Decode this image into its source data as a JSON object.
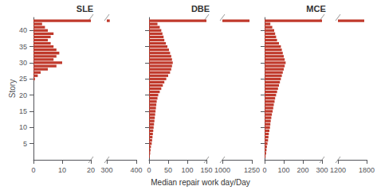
{
  "chart_data": [
    {
      "type": "bar",
      "orientation": "horizontal",
      "title": "SLE",
      "ylabel": "Story",
      "categories": [
        1,
        2,
        3,
        4,
        5,
        6,
        7,
        8,
        9,
        10,
        11,
        12,
        13,
        14,
        15,
        16,
        17,
        18,
        19,
        20,
        21,
        22,
        23,
        24,
        25,
        26,
        27,
        28,
        29,
        30,
        31,
        32,
        33,
        34,
        35,
        36,
        37,
        38,
        39,
        40,
        41,
        42,
        43
      ],
      "values": [
        0,
        0,
        0,
        0,
        0,
        0,
        0,
        0,
        0,
        0,
        0,
        0,
        0,
        0,
        0,
        0,
        0,
        0,
        0,
        0,
        0,
        0,
        0,
        0,
        0.5,
        1.5,
        2.5,
        5,
        8,
        10,
        7,
        8,
        9,
        8,
        7,
        6,
        5,
        6,
        7,
        5,
        4,
        3,
        310
      ],
      "color": "#c0392b",
      "xlim": [
        0,
        400
      ],
      "xticks": [
        0,
        10,
        20,
        300,
        400
      ],
      "ylim": [
        0,
        44
      ],
      "yticks": [
        5,
        10,
        15,
        20,
        25,
        30,
        35,
        40
      ],
      "grid": false
    },
    {
      "type": "bar",
      "orientation": "horizontal",
      "title": "DBE",
      "xlabel": "Median repair work day/Day",
      "categories": [
        1,
        2,
        3,
        4,
        5,
        6,
        7,
        8,
        9,
        10,
        11,
        12,
        13,
        14,
        15,
        16,
        17,
        18,
        19,
        20,
        21,
        22,
        23,
        24,
        25,
        26,
        27,
        28,
        29,
        30,
        31,
        32,
        33,
        34,
        35,
        36,
        37,
        38,
        39,
        40,
        41,
        42,
        43
      ],
      "values": [
        2,
        3,
        4,
        5,
        7,
        8,
        9,
        10,
        11,
        12,
        13,
        14,
        15,
        16,
        17,
        18,
        19,
        20,
        22,
        24,
        28,
        32,
        36,
        40,
        45,
        50,
        55,
        58,
        60,
        62,
        60,
        58,
        55,
        52,
        48,
        44,
        40,
        38,
        35,
        32,
        28,
        22,
        1230
      ],
      "color": "#c0392b",
      "xlim": [
        0,
        1250
      ],
      "xticks": [
        0,
        50,
        100,
        150,
        1000,
        1250
      ],
      "ylim": [
        0,
        44
      ],
      "yticks": [
        5,
        10,
        15,
        20,
        25,
        30,
        35,
        40
      ],
      "grid": false,
      "tick_labels": "x"
    },
    {
      "type": "bar",
      "orientation": "horizontal",
      "title": "MCE",
      "categories": [
        1,
        2,
        3,
        4,
        5,
        6,
        7,
        8,
        9,
        10,
        11,
        12,
        13,
        14,
        15,
        16,
        17,
        18,
        19,
        20,
        21,
        22,
        23,
        24,
        25,
        26,
        27,
        28,
        29,
        30,
        31,
        32,
        33,
        34,
        35,
        36,
        37,
        38,
        39,
        40,
        41,
        42,
        43
      ],
      "values": [
        5,
        8,
        10,
        12,
        15,
        18,
        20,
        22,
        25,
        28,
        30,
        32,
        35,
        38,
        42,
        45,
        48,
        52,
        55,
        60,
        65,
        70,
        75,
        80,
        85,
        90,
        95,
        100,
        105,
        110,
        105,
        100,
        95,
        90,
        85,
        75,
        65,
        60,
        55,
        50,
        40,
        30,
        1750
      ],
      "color": "#c0392b",
      "xlim": [
        0,
        1800
      ],
      "xticks": [
        0,
        100,
        200,
        300,
        1200,
        1800
      ],
      "ylim": [
        0,
        44
      ],
      "yticks": [
        5,
        10,
        15,
        20,
        25,
        30,
        35,
        40
      ],
      "grid": false,
      "tick_labels": "x"
    }
  ]
}
